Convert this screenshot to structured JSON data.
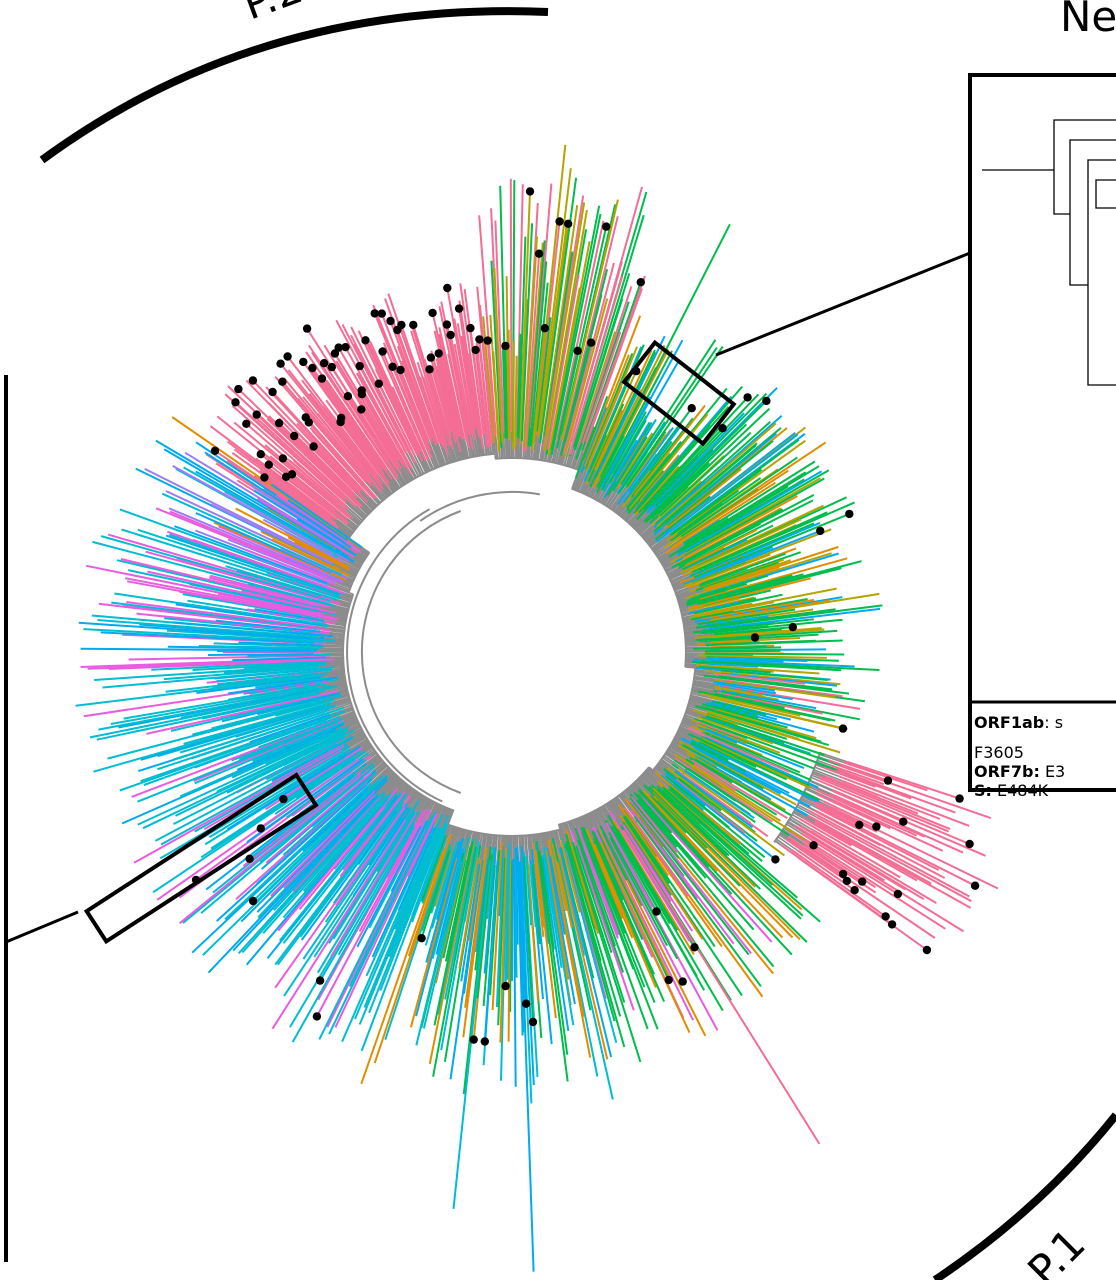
{
  "clades": {
    "p2": "P.2",
    "p1": "P.1"
  },
  "inset": {
    "title": "Ne",
    "mutations": [
      {
        "gene": "ORF1ab",
        "sep": ": ",
        "text": "s"
      },
      {
        "gene": "",
        "sep": "",
        "text": "F3605"
      },
      {
        "gene": "ORF7b:",
        "sep": " ",
        "text": "E3"
      },
      {
        "gene": "S:",
        "sep": " ",
        "text": "E484K"
      }
    ]
  },
  "palette": {
    "p2": "#f46d94",
    "olive": "#b5a300",
    "green": "#00bd4d",
    "blue": "#00aaf0",
    "orange": "#e08d00",
    "cyan": "#00bdd2",
    "violet": "#9e7cf5",
    "magenta": "#e85ce0",
    "internal": "#8c8c8c"
  }
}
